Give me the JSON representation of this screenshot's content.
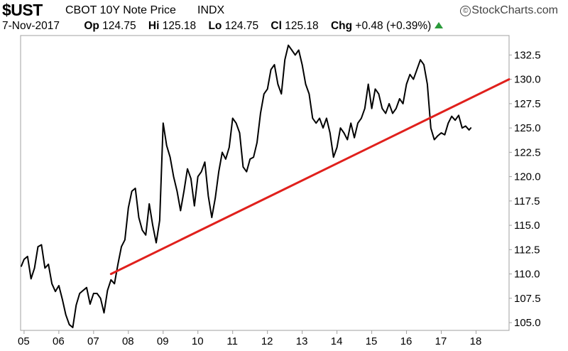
{
  "header": {
    "symbol": "$UST",
    "description": "CBOT 10Y Note Price",
    "exchange": "INDX",
    "brand": "StockCharts.com",
    "brand_symbol": "©",
    "date": "7-Nov-2017",
    "open_label": "Op",
    "open_value": "124.75",
    "high_label": "Hi",
    "high_value": "125.18",
    "low_label": "Lo",
    "low_value": "124.75",
    "close_label": "Cl",
    "close_value": "125.18",
    "change_label": "Chg",
    "change_value": "+0.48 (+0.39%)",
    "change_direction_color": "#2a9a3a"
  },
  "chart_data": {
    "type": "line",
    "title": "$UST CBOT 10Y Note Price INDX",
    "xlabel": "",
    "ylabel": "",
    "x_tick_labels": [
      "05",
      "06",
      "07",
      "08",
      "09",
      "10",
      "11",
      "12",
      "13",
      "14",
      "15",
      "16",
      "17",
      "18"
    ],
    "x_tick_years": [
      2005,
      2006,
      2007,
      2008,
      2009,
      2010,
      2011,
      2012,
      2013,
      2014,
      2015,
      2016,
      2017,
      2018
    ],
    "y_tick_labels": [
      "105.0",
      "107.5",
      "110.0",
      "112.5",
      "115.0",
      "117.5",
      "120.0",
      "122.5",
      "125.0",
      "127.5",
      "130.0",
      "132.5"
    ],
    "y_tick_values": [
      105.0,
      107.5,
      110.0,
      112.5,
      115.0,
      117.5,
      120.0,
      122.5,
      125.0,
      127.5,
      130.0,
      132.5
    ],
    "xlim": [
      2004.9,
      2018.95
    ],
    "ylim": [
      104.2,
      134.5
    ],
    "grid": false,
    "y_axis_side": "right",
    "series": [
      {
        "color": "#000000",
        "x": [
          2004.92,
          2005.0,
          2005.1,
          2005.2,
          2005.3,
          2005.4,
          2005.5,
          2005.6,
          2005.7,
          2005.8,
          2005.9,
          2006.0,
          2006.1,
          2006.2,
          2006.3,
          2006.4,
          2006.5,
          2006.6,
          2006.7,
          2006.8,
          2006.9,
          2007.0,
          2007.1,
          2007.2,
          2007.3,
          2007.4,
          2007.5,
          2007.6,
          2007.7,
          2007.8,
          2007.9,
          2008.0,
          2008.1,
          2008.2,
          2008.3,
          2008.4,
          2008.5,
          2008.6,
          2008.7,
          2008.8,
          2008.9,
          2009.0,
          2009.1,
          2009.2,
          2009.3,
          2009.4,
          2009.5,
          2009.6,
          2009.7,
          2009.8,
          2009.9,
          2010.0,
          2010.1,
          2010.2,
          2010.3,
          2010.4,
          2010.5,
          2010.6,
          2010.7,
          2010.8,
          2010.9,
          2011.0,
          2011.1,
          2011.2,
          2011.3,
          2011.4,
          2011.5,
          2011.6,
          2011.7,
          2011.8,
          2011.9,
          2012.0,
          2012.1,
          2012.2,
          2012.3,
          2012.4,
          2012.5,
          2012.6,
          2012.7,
          2012.8,
          2012.9,
          2013.0,
          2013.1,
          2013.2,
          2013.3,
          2013.4,
          2013.5,
          2013.6,
          2013.7,
          2013.8,
          2013.9,
          2014.0,
          2014.1,
          2014.2,
          2014.3,
          2014.4,
          2014.5,
          2014.6,
          2014.7,
          2014.8,
          2014.9,
          2015.0,
          2015.1,
          2015.2,
          2015.3,
          2015.4,
          2015.5,
          2015.6,
          2015.7,
          2015.8,
          2015.9,
          2016.0,
          2016.1,
          2016.2,
          2016.3,
          2016.4,
          2016.5,
          2016.6,
          2016.7,
          2016.8,
          2016.9,
          2017.0,
          2017.1,
          2017.2,
          2017.3,
          2017.4,
          2017.5,
          2017.6,
          2017.7,
          2017.8,
          2017.85
        ],
        "values": [
          110.8,
          111.5,
          111.8,
          109.5,
          110.6,
          112.8,
          113.0,
          110.6,
          111.0,
          109.0,
          108.2,
          108.8,
          107.4,
          105.8,
          104.8,
          104.5,
          106.8,
          108.0,
          108.3,
          108.6,
          106.9,
          108.0,
          108.0,
          107.5,
          106.0,
          108.3,
          109.4,
          109.0,
          111.0,
          112.8,
          113.5,
          116.8,
          118.5,
          118.8,
          115.8,
          114.5,
          114.0,
          117.2,
          115.0,
          113.2,
          115.5,
          125.5,
          123.2,
          122.0,
          120.0,
          118.5,
          116.5,
          118.5,
          120.8,
          119.8,
          117.0,
          120.0,
          120.5,
          121.5,
          118.0,
          115.8,
          117.8,
          120.5,
          122.5,
          121.8,
          123.0,
          126.0,
          125.5,
          124.5,
          121.0,
          120.5,
          121.8,
          122.0,
          123.5,
          126.5,
          128.5,
          129.0,
          131.0,
          131.5,
          129.5,
          128.5,
          132.0,
          133.5,
          133.0,
          132.5,
          133.0,
          131.5,
          129.5,
          128.5,
          126.0,
          125.5,
          126.0,
          125.0,
          126.0,
          124.5,
          122.0,
          123.0,
          125.0,
          124.5,
          123.8,
          125.5,
          124.0,
          125.5,
          126.0,
          127.0,
          129.5,
          127.0,
          129.0,
          128.5,
          127.0,
          126.5,
          127.5,
          126.5,
          127.0,
          128.0,
          127.5,
          129.5,
          130.5,
          130.0,
          131.0,
          132.0,
          131.5,
          129.5,
          125.0,
          123.8,
          124.2,
          124.5,
          124.3,
          125.5,
          126.2,
          125.8,
          126.3,
          125.0,
          125.2,
          124.8,
          125.0
        ]
      },
      {
        "color": "#e0201c",
        "x": [
          2007.5,
          2018.95
        ],
        "values": [
          110.0,
          130.0
        ]
      }
    ]
  }
}
